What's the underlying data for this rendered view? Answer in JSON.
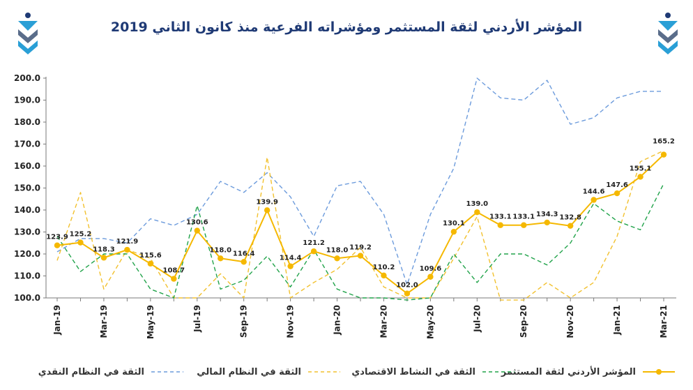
{
  "title": "المؤشر الأردني لثقة المستثمر ومؤشراته الفرعية منذ كانون الثاني 2019",
  "logo_icon": "jsc-emblem-icon",
  "chart_data": {
    "type": "line",
    "x": [
      "Jan-19",
      "Feb-19",
      "Mar-19",
      "Apr-19",
      "May-19",
      "Jun-19",
      "Jul-19",
      "Aug-19",
      "Sep-19",
      "Oct-19",
      "Nov-19",
      "Dec-19",
      "Jan-20",
      "Feb-20",
      "Mar-20",
      "Apr-20",
      "May-20",
      "Jun-20",
      "Jul-20",
      "Aug-20",
      "Sep-20",
      "Oct-20",
      "Nov-20",
      "Dec-20",
      "Jan-21",
      "Feb-21",
      "Mar-21"
    ],
    "x_tick_labels": [
      "Jan-19",
      "Mar-19",
      "May-19",
      "Jul-19",
      "Sep-19",
      "Nov-19",
      "Jan-20",
      "Mar-20",
      "May-20",
      "Jul-20",
      "Sep-20",
      "Nov-20",
      "Jan-21",
      "Mar-21"
    ],
    "ylim": [
      100,
      200
    ],
    "y_ticks": [
      "100.0",
      "110.0",
      "120.0",
      "130.0",
      "140.0",
      "150.0",
      "160.0",
      "170.0",
      "180.0",
      "190.0",
      "200.0"
    ],
    "legend_position": "bottom",
    "series": [
      {
        "name": "المؤشر الأردني لثقة المستثمر",
        "color": "#f5b800",
        "style": "solid-markers",
        "values": [
          123.9,
          125.2,
          118.3,
          121.9,
          115.6,
          108.7,
          130.6,
          118.0,
          116.4,
          139.9,
          114.4,
          121.2,
          118.0,
          119.2,
          110.2,
          102.0,
          109.6,
          130.1,
          139.0,
          133.1,
          133.1,
          134.3,
          132.8,
          144.6,
          147.6,
          155.1,
          165.2
        ],
        "data_labels": [
          "123.9",
          "125.2",
          "118.3",
          "121.9",
          "115.6",
          "108.7",
          "130.6",
          "118.0",
          "116.4",
          "139.9",
          "114.4",
          "121.2",
          "118.0",
          "119.2",
          "110.2",
          "102.0",
          "109.6",
          "130.1",
          "139.0",
          "133.1",
          "133.1",
          "134.3",
          "132.8",
          "144.6",
          "147.6",
          "155.1",
          "165.2"
        ]
      },
      {
        "name": "الثقة في النشاط الاقتصادي",
        "color": "#21a34a",
        "style": "dashed",
        "values": [
          128,
          112,
          120,
          120,
          104,
          100,
          142,
          104,
          108,
          119,
          105,
          122,
          104,
          100,
          100,
          99,
          100,
          120,
          107,
          120,
          120,
          115,
          125,
          143,
          135,
          131,
          152
        ]
      },
      {
        "name": "الثقة في النظام المالي",
        "color": "#f2c12e",
        "style": "dashed",
        "values": [
          117,
          148,
          104,
          122,
          118,
          100,
          100,
          111,
          100,
          164,
          100,
          107,
          113,
          123,
          105,
          100,
          100,
          118,
          137,
          99,
          99,
          107,
          100,
          107,
          128,
          162,
          167
        ]
      },
      {
        "name": "الثقة في النظام النقدي",
        "color": "#6c9bdc",
        "style": "dashed",
        "values": [
          121,
          127,
          127,
          125,
          136,
          133,
          138,
          153,
          148,
          157,
          146,
          128,
          151,
          153,
          138,
          106,
          138,
          159,
          200,
          191,
          190,
          199,
          179,
          182,
          191,
          194,
          194
        ]
      }
    ]
  }
}
